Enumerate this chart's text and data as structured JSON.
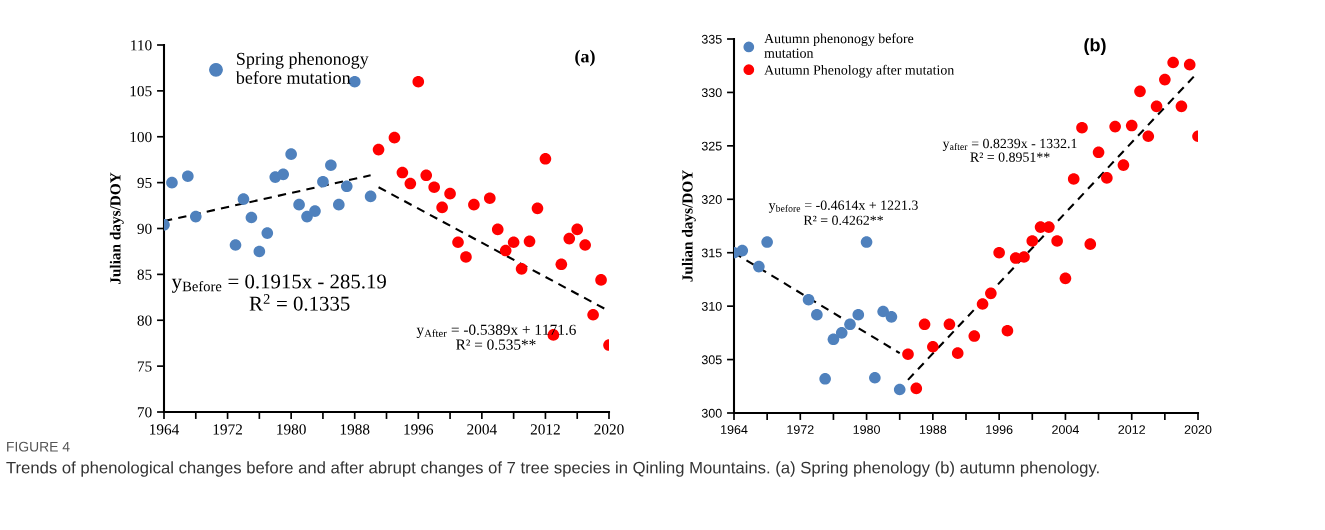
{
  "chart_data": [
    {
      "type": "scatter",
      "title": "(a)",
      "ylabel": "Julian days/DOY",
      "xlim": [
        1964,
        2020
      ],
      "ylim": [
        70,
        110
      ],
      "xticks": [
        1964,
        {
          "value": 1968,
          "label": null
        },
        1972,
        {
          "value": 1976,
          "label": null
        },
        1980,
        {
          "value": 1984,
          "label": null
        },
        1988,
        {
          "value": 1992,
          "label": null
        },
        1996,
        {
          "value": 2000,
          "label": null
        },
        2004,
        {
          "value": 2008,
          "label": null
        },
        2012,
        {
          "value": 2016,
          "label": null
        },
        2020
      ],
      "yticks": [
        70,
        75,
        80,
        85,
        90,
        95,
        100,
        105,
        110
      ],
      "grid": false,
      "legend": "top left",
      "annotations": [
        "y$_{Before}$ = 0.1915x - 285.19",
        "R$^{2}$ = 0.1335",
        "y$_{After}$ = -0.5389x + 1171.6",
        "R² = 0.535**",
        "FIGURE 4",
        "Trends of phenological changes before and after abrupt changes of 7 tree species in Qinling Mountains. (a) Spring phenology (b) autumn phenology."
      ],
      "series": [
        {
          "marker": "circle",
          "name": "Spring phenonogy\nbefore mutation",
          "color": "#4f81bd",
          "x": [
            1964,
            1965,
            1967,
            1968,
            1973,
            1974,
            1975,
            1976,
            1977,
            1978,
            1979,
            1980,
            1981,
            1982,
            1983,
            1984,
            1985,
            1986,
            1987,
            1988,
            1990
          ],
          "values": [
            90.4,
            95.0,
            95.7,
            91.3,
            88.2,
            93.2,
            91.2,
            87.5,
            89.5,
            95.6,
            95.9,
            98.1,
            92.6,
            91.3,
            91.9,
            95.1,
            96.9,
            92.6,
            94.6,
            106.0,
            93.5
          ]
        },
        {
          "marker": "circle",
          "color": "#ff0000",
          "x": [
            1991,
            1993,
            1994,
            1995,
            1996,
            1997,
            1998,
            1999,
            2000,
            2001,
            2002,
            2003,
            2005,
            2006,
            2007,
            2008,
            2009,
            2010,
            2011,
            2012,
            2013,
            2014,
            2015,
            2016,
            2017,
            2018,
            2019,
            2020
          ],
          "values": [
            98.6,
            99.9,
            96.1,
            94.9,
            106.0,
            95.8,
            94.5,
            92.3,
            93.8,
            88.5,
            86.9,
            92.6,
            93.3,
            89.9,
            87.6,
            88.5,
            85.6,
            88.6,
            92.2,
            97.6,
            78.4,
            86.1,
            88.9,
            89.9,
            88.2,
            80.6,
            84.4,
            77.3
          ]
        },
        {
          "type": "line",
          "color": "#000000",
          "line_style": "dashed",
          "x": [
            1964,
            1990
          ],
          "values": [
            90.8,
            95.8
          ]
        },
        {
          "type": "line",
          "color": "#000000",
          "line_style": "dashed",
          "x": [
            1991,
            2020
          ],
          "values": [
            94.5,
            81.0
          ]
        }
      ]
    },
    {
      "type": "scatter",
      "title": "(b)",
      "ylabel": "Julian days/DOY",
      "xlim": [
        1964,
        2020
      ],
      "ylim": [
        300,
        335
      ],
      "xticks": [
        1964,
        {
          "value": 1968,
          "label": null
        },
        1972,
        {
          "value": 1976,
          "label": null
        },
        1980,
        {
          "value": 1984,
          "label": null
        },
        1988,
        {
          "value": 1992,
          "label": null
        },
        1996,
        {
          "value": 2000,
          "label": null
        },
        2004,
        {
          "value": 2008,
          "label": null
        },
        2012,
        {
          "value": 2016,
          "label": null
        },
        2020
      ],
      "yticks": [
        300,
        305,
        310,
        315,
        320,
        325,
        330,
        335
      ],
      "grid": false,
      "legend": "top left",
      "annotations": [
        "y$_{before}$ = -0.4614x + 1221.3",
        "R² = 0.4262**",
        "y$_{after}$ = 0.8239x - 1332.1",
        "R² = 0.8951**"
      ],
      "series": [
        {
          "marker": "circle",
          "name": "Autumn phenonogy before\nmutation",
          "color": "#4f81bd",
          "x": [
            1964,
            1965,
            1967,
            1968,
            1973,
            1974,
            1975,
            1976,
            1977,
            1978,
            1979,
            1980,
            1981,
            1982,
            1983,
            1984
          ],
          "values": [
            315.0,
            315.2,
            313.7,
            316.0,
            310.6,
            309.2,
            303.2,
            306.9,
            307.5,
            308.3,
            309.2,
            316.0,
            303.3,
            309.5,
            309.0,
            302.2
          ]
        },
        {
          "marker": "circle",
          "name": "Autumn Phenology after mutation",
          "color": "#ff0000",
          "x": [
            1985,
            1986,
            1987,
            1988,
            1990,
            1991,
            1993,
            1994,
            1995,
            1996,
            1997,
            1998,
            1999,
            2000,
            2001,
            2002,
            2003,
            2004,
            2005,
            2006,
            2007,
            2008,
            2009,
            2010,
            2011,
            2012,
            2013,
            2014,
            2015,
            2016,
            2017,
            2018,
            2019,
            2020
          ],
          "values": [
            305.5,
            302.3,
            308.3,
            306.2,
            308.3,
            305.6,
            307.2,
            310.2,
            311.2,
            315.0,
            307.7,
            314.5,
            314.6,
            316.1,
            317.4,
            317.4,
            316.1,
            312.6,
            321.9,
            326.7,
            315.8,
            324.4,
            322.0,
            326.8,
            323.2,
            326.9,
            330.1,
            325.9,
            328.7,
            331.2,
            332.8,
            328.7,
            332.6,
            325.9
          ]
        },
        {
          "type": "line",
          "color": "#000000",
          "line_style": "dashed",
          "x": [
            1964,
            1984
          ],
          "values": [
            315.0,
            305.6
          ]
        },
        {
          "type": "line",
          "color": "#000000",
          "line_style": "dashed",
          "x": [
            1985,
            2020
          ],
          "values": [
            303.1,
            331.9
          ]
        }
      ]
    }
  ]
}
